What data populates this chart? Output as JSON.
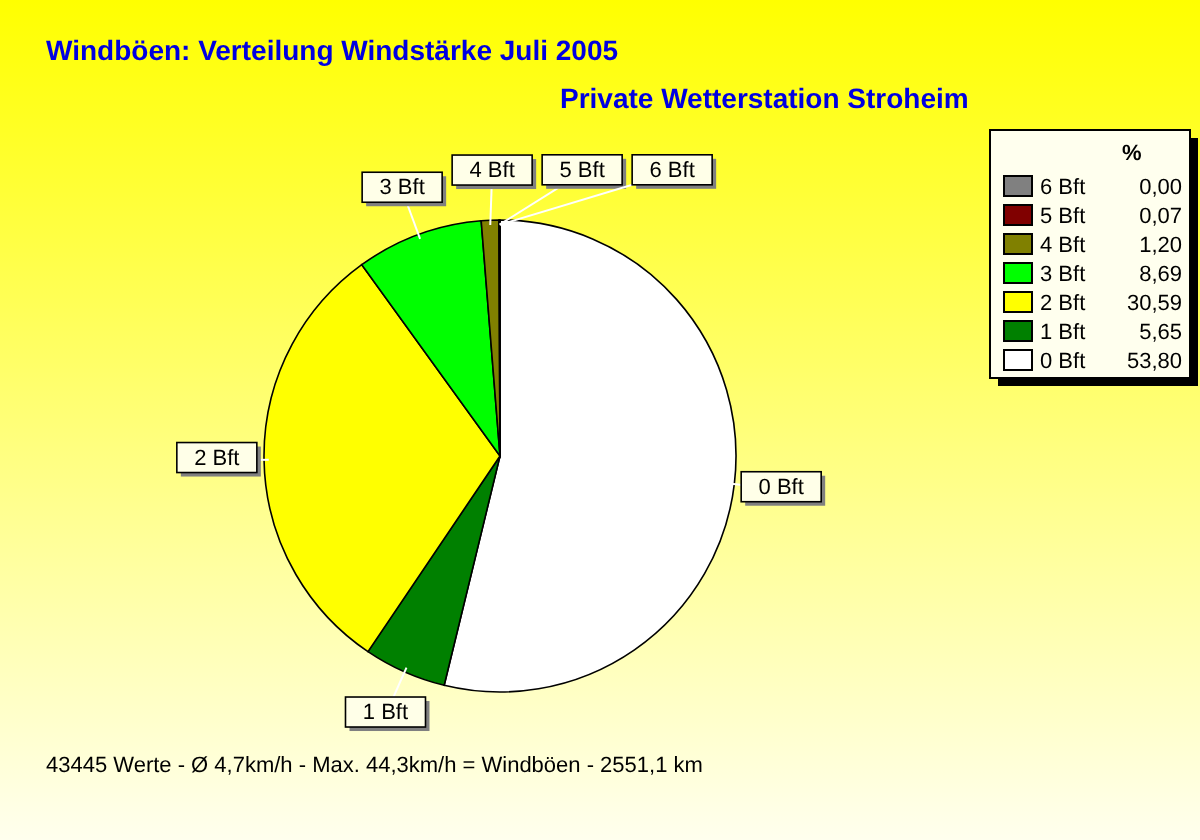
{
  "chart_data": {
    "type": "pie",
    "title": "Windböen: Verteilung Windstärke  Juli 2005",
    "subtitle": "Private Wetterstation Stroheim",
    "legend_title": "%",
    "legend": "right",
    "categories": [
      "0 Bft",
      "1 Bft",
      "2 Bft",
      "3 Bft",
      "4 Bft",
      "5 Bft",
      "6 Bft"
    ],
    "values": [
      53.8,
      5.65,
      30.59,
      8.69,
      1.2,
      0.07,
      0.0
    ],
    "value_labels": [
      "53,80",
      "5,65",
      "30,59",
      "8,69",
      "1,20",
      "0,07",
      "0,00"
    ],
    "colors": [
      "#ffffff",
      "#008000",
      "#ffff00",
      "#00ff00",
      "#808000",
      "#800000",
      "#808080"
    ],
    "annotations": [
      "43445 Werte   -   Ø 4,7km/h  -  Max. 44,3km/h = Windböen   -   2551,1 km"
    ]
  }
}
